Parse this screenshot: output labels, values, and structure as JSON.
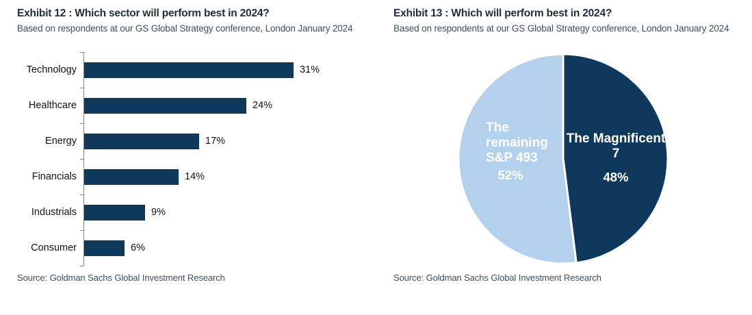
{
  "left_chart": {
    "title": "Exhibit 12 : Which sector will perform best in 2024?",
    "subtitle": "Based on respondents at our GS Global Strategy conference, London January 2024",
    "source": "Source: Goldman Sachs Global Investment Research"
  },
  "right_chart": {
    "title": "Exhibit 13 : Which will perform best in 2024?",
    "subtitle": "Based on respondents at our GS Global Strategy conference, London January 2024",
    "source": "Source: Goldman Sachs Global Investment Research"
  },
  "colors": {
    "navy": "#0f395c",
    "light_blue": "#b3d1ec",
    "title_text": "#202e3c",
    "body_text": "#3a4f60",
    "label_text": "#111111",
    "axis": "#808080",
    "pie_divider": "#ffffff"
  },
  "chart_data": [
    {
      "type": "bar",
      "orientation": "horizontal",
      "title": "Exhibit 12 : Which sector will perform best in 2024?",
      "categories": [
        "Technology",
        "Healthcare",
        "Energy",
        "Financials",
        "Industrials",
        "Consumer"
      ],
      "values": [
        31,
        24,
        17,
        14,
        9,
        6
      ],
      "value_labels": [
        "31%",
        "24%",
        "17%",
        "14%",
        "9%",
        "6%"
      ],
      "value_unit": "%",
      "bar_color": "#0f395c",
      "xlim": [
        0,
        31
      ],
      "grid": false,
      "legend": "none"
    },
    {
      "type": "pie",
      "title": "Exhibit 13 : Which will perform best in 2024?",
      "start_angle_deg": 0,
      "direction": "clockwise",
      "divider_color": "#ffffff",
      "slices": [
        {
          "label": "The Magnificent 7",
          "pct_label": "48%",
          "value": 48,
          "color": "#0f395c"
        },
        {
          "label": "The remaining S&P 493",
          "pct_label": "52%",
          "value": 52,
          "color": "#b3d1ec"
        }
      ]
    }
  ]
}
